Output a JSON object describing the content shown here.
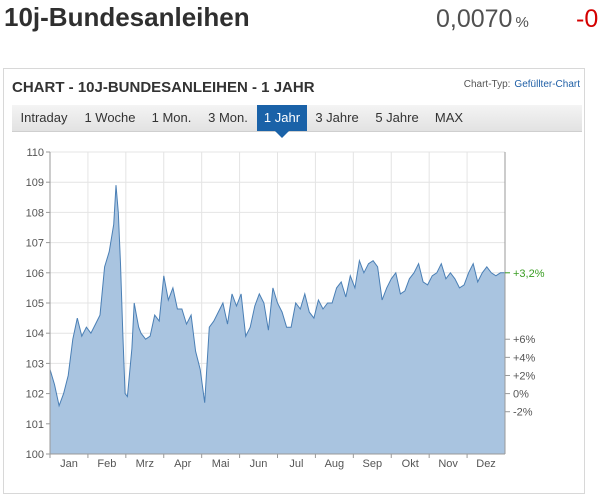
{
  "header": {
    "title": "10j-Bundesanleihen",
    "quote_value": "0,0070",
    "quote_unit": "%",
    "change_value": "-0"
  },
  "panel": {
    "title": "CHART - 10J-BUNDESANLEIHEN - 1 JAHR",
    "chart_type_label": "Chart-Typ:",
    "chart_type_value": "Gefüllter-Chart"
  },
  "tabs": [
    {
      "label": "Intraday",
      "active": false
    },
    {
      "label": "1 Woche",
      "active": false
    },
    {
      "label": "1 Mon.",
      "active": false
    },
    {
      "label": "3 Mon.",
      "active": false
    },
    {
      "label": "1 Jahr",
      "active": true
    },
    {
      "label": "3 Jahre",
      "active": false
    },
    {
      "label": "5 Jahre",
      "active": false
    },
    {
      "label": "MAX",
      "active": false
    }
  ],
  "colors": {
    "fill": "#a9c4e0",
    "line": "#4a7fb5",
    "active_tab": "#1a62a8",
    "positive": "#3a9d23",
    "negative": "#d40000"
  },
  "chart_data": {
    "type": "area",
    "title": "",
    "xlabel": "",
    "ylabel": "",
    "ylim": [
      100,
      110
    ],
    "y_ticks": [
      100,
      101,
      102,
      103,
      104,
      105,
      106,
      107,
      108,
      109,
      110
    ],
    "x_ticks": [
      "Jan",
      "Feb",
      "Mrz",
      "Apr",
      "Mai",
      "Jun",
      "Jul",
      "Aug",
      "Sep",
      "Okt",
      "Nov",
      "Dez"
    ],
    "right_axis": {
      "ticks": [
        "+6%",
        "+4%",
        "+2%",
        "0%",
        "-2%"
      ],
      "current_label": "+3,2%"
    },
    "grid": true,
    "x": [
      0.0,
      0.01,
      0.02,
      0.03,
      0.04,
      0.05,
      0.06,
      0.07,
      0.08,
      0.09,
      0.1,
      0.11,
      0.12,
      0.13,
      0.14,
      0.145,
      0.15,
      0.155,
      0.16,
      0.165,
      0.17,
      0.18,
      0.185,
      0.19,
      0.195,
      0.2,
      0.21,
      0.22,
      0.23,
      0.24,
      0.25,
      0.26,
      0.27,
      0.28,
      0.29,
      0.3,
      0.31,
      0.32,
      0.33,
      0.34,
      0.35,
      0.36,
      0.37,
      0.38,
      0.39,
      0.4,
      0.41,
      0.42,
      0.43,
      0.44,
      0.45,
      0.46,
      0.47,
      0.48,
      0.49,
      0.5,
      0.51,
      0.52,
      0.53,
      0.54,
      0.55,
      0.56,
      0.57,
      0.58,
      0.59,
      0.6,
      0.61,
      0.62,
      0.63,
      0.64,
      0.65,
      0.66,
      0.67,
      0.68,
      0.69,
      0.7,
      0.71,
      0.72,
      0.73,
      0.74,
      0.75,
      0.76,
      0.77,
      0.78,
      0.79,
      0.8,
      0.81,
      0.82,
      0.83,
      0.84,
      0.85,
      0.86,
      0.87,
      0.88,
      0.89,
      0.9,
      0.91,
      0.92,
      0.93,
      0.94,
      0.95,
      0.96,
      0.97,
      0.98,
      0.99,
      1.0
    ],
    "values": [
      102.8,
      102.3,
      101.6,
      102.0,
      102.6,
      103.8,
      104.5,
      103.9,
      104.2,
      104.0,
      104.3,
      104.6,
      106.2,
      106.7,
      107.6,
      108.9,
      108.0,
      106.3,
      104.0,
      102.0,
      101.9,
      103.5,
      105.0,
      104.6,
      104.2,
      104.0,
      103.8,
      103.9,
      104.6,
      104.4,
      105.9,
      105.1,
      105.5,
      104.8,
      104.8,
      104.3,
      104.6,
      103.4,
      102.8,
      101.7,
      104.2,
      104.4,
      104.7,
      105.0,
      104.3,
      105.3,
      104.9,
      105.3,
      103.9,
      104.2,
      104.9,
      105.3,
      105.0,
      104.1,
      105.5,
      105.0,
      104.7,
      104.2,
      104.2,
      105.0,
      104.8,
      105.3,
      104.7,
      104.5,
      105.1,
      104.8,
      105.0,
      105.0,
      105.5,
      105.7,
      105.2,
      105.9,
      105.5,
      106.4,
      106.0,
      106.3,
      106.4,
      106.2,
      105.1,
      105.5,
      105.8,
      106.0,
      105.3,
      105.4,
      105.8,
      106.0,
      106.3,
      105.7,
      105.6,
      105.9,
      106.0,
      106.3,
      105.8,
      106.0,
      105.8,
      105.5,
      105.6,
      106.0,
      106.3,
      105.7,
      106.0,
      106.2,
      106.0,
      105.9,
      106.0,
      106.0
    ]
  }
}
